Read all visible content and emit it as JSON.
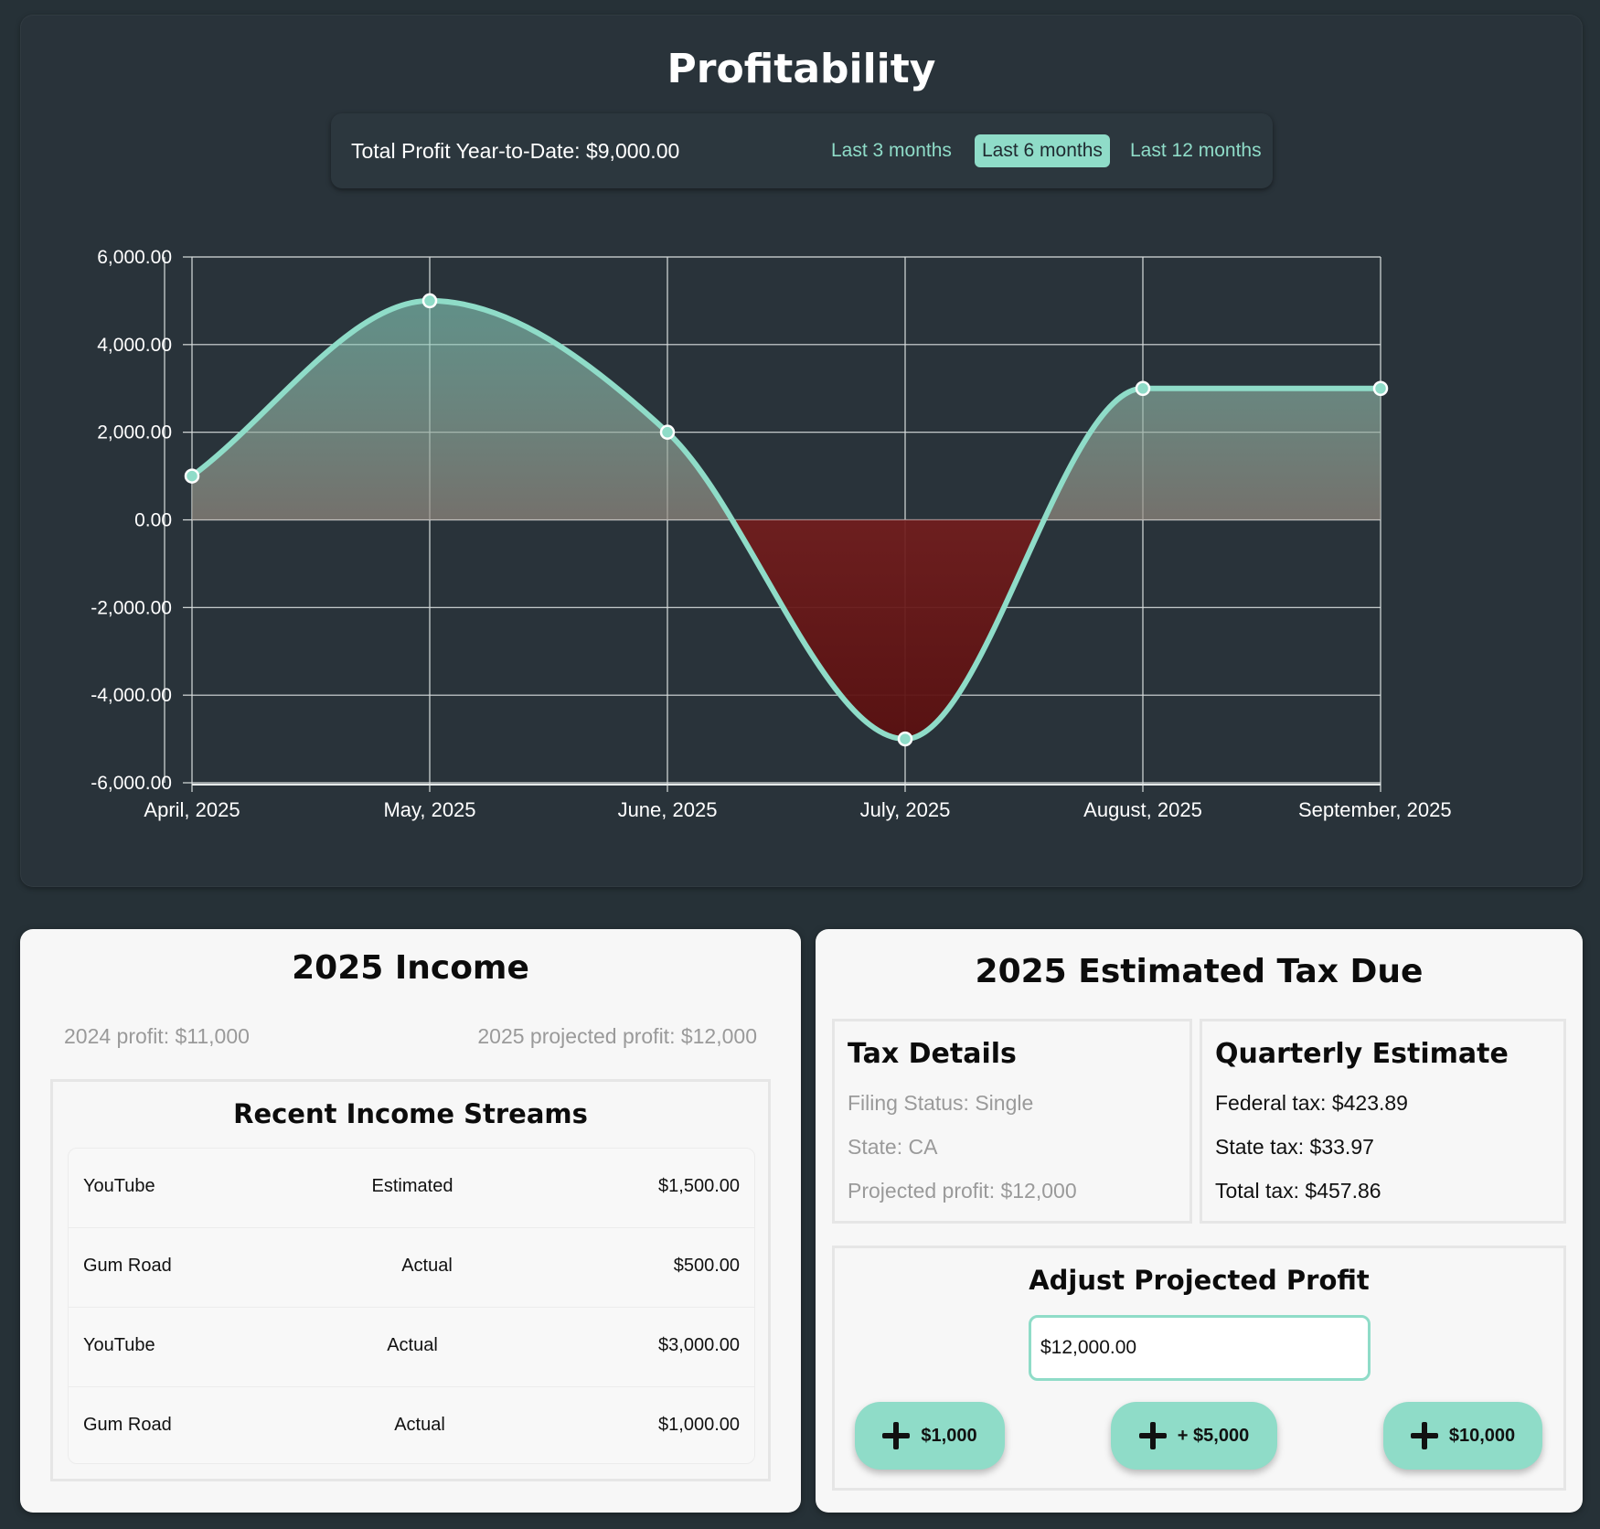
{
  "profitability": {
    "title": "Profitability",
    "total_profit_label": "Total Profit Year-to-Date: $9,000.00",
    "ranges": [
      {
        "label": "Last 3 months",
        "active": false
      },
      {
        "label": "Last 6 months",
        "active": true
      },
      {
        "label": "Last 12 months",
        "active": false
      }
    ]
  },
  "chart_data": {
    "type": "area",
    "categories": [
      "April, 2025",
      "May, 2025",
      "June, 2025",
      "July, 2025",
      "August, 2025",
      "September, 2025"
    ],
    "series": [
      {
        "values": [
          1000,
          5000,
          2000,
          -5000,
          3000,
          3000
        ]
      }
    ],
    "ylim": [
      -6000,
      6000
    ],
    "yticks": [
      6000,
      4000,
      2000,
      0,
      -2000,
      -4000,
      -6000
    ],
    "ytick_labels": [
      "6,000.00",
      "4,000.00",
      "2,000.00",
      "0.00",
      "-2,000.00",
      "-4,000.00",
      "-6,000.00"
    ],
    "grid": true,
    "line_color": "#8fdcc8",
    "fill_color": "#8a2020"
  },
  "income": {
    "title": "2025 Income",
    "profit_2024": "2024 profit: $11,000",
    "profit_2025_projected": "2025 projected profit: $12,000",
    "streams_title": "Recent Income Streams",
    "streams": [
      {
        "name": "YouTube",
        "type": "Estimated",
        "amount": "$1,500.00"
      },
      {
        "name": "Gum Road",
        "type": "Actual",
        "amount": "$500.00"
      },
      {
        "name": "YouTube",
        "type": "Actual",
        "amount": "$3,000.00"
      },
      {
        "name": "Gum Road",
        "type": "Actual",
        "amount": "$1,000.00"
      }
    ]
  },
  "tax": {
    "title": "2025 Estimated Tax Due",
    "details_title": "Tax Details",
    "filing_status": "Filing Status: Single",
    "state": "State: CA",
    "projected_profit": "Projected profit: $12,000",
    "quarterly_title": "Quarterly Estimate",
    "federal": "Federal tax: $423.89",
    "state_tax": "State tax: $33.97",
    "total": "Total tax: $457.86",
    "adjust_title": "Adjust Projected Profit",
    "adjust_value": "$12,000.00",
    "buttons": [
      "$1,000",
      "+ $5,000",
      "$10,000"
    ]
  }
}
